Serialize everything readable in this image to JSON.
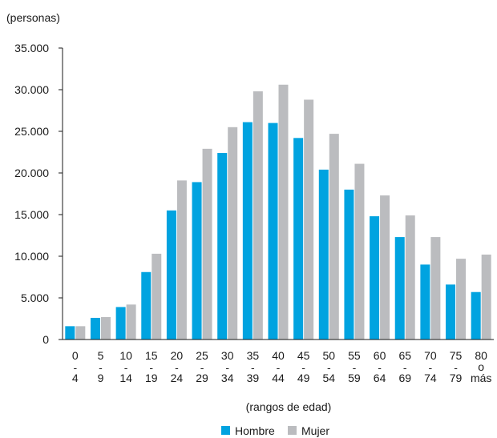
{
  "chart_data": {
    "type": "bar",
    "unit_label": "(personas)",
    "xlabel": "(rangos de edad)",
    "ylabel": "",
    "ylim": [
      0,
      35000
    ],
    "y_ticks": [
      0,
      5000,
      10000,
      15000,
      20000,
      25000,
      30000,
      35000
    ],
    "y_tick_labels": [
      "0",
      "5.000",
      "10.000",
      "15.000",
      "20.000",
      "25.000",
      "30.000",
      "35.000"
    ],
    "grid": false,
    "legend_position": "bottom",
    "categories": [
      {
        "top": "0",
        "sep": "-",
        "bottom": "4"
      },
      {
        "top": "5",
        "sep": "-",
        "bottom": "9"
      },
      {
        "top": "10",
        "sep": "-",
        "bottom": "14"
      },
      {
        "top": "15",
        "sep": "-",
        "bottom": "19"
      },
      {
        "top": "20",
        "sep": "-",
        "bottom": "24"
      },
      {
        "top": "25",
        "sep": "-",
        "bottom": "29"
      },
      {
        "top": "30",
        "sep": "-",
        "bottom": "34"
      },
      {
        "top": "35",
        "sep": "-",
        "bottom": "39"
      },
      {
        "top": "40",
        "sep": "-",
        "bottom": "44"
      },
      {
        "top": "45",
        "sep": "-",
        "bottom": "49"
      },
      {
        "top": "50",
        "sep": "-",
        "bottom": "54"
      },
      {
        "top": "55",
        "sep": "-",
        "bottom": "59"
      },
      {
        "top": "60",
        "sep": "-",
        "bottom": "64"
      },
      {
        "top": "65",
        "sep": "-",
        "bottom": "69"
      },
      {
        "top": "70",
        "sep": "-",
        "bottom": "74"
      },
      {
        "top": "75",
        "sep": "-",
        "bottom": "79"
      },
      {
        "top": "80",
        "sep": "o",
        "bottom": "más"
      }
    ],
    "series": [
      {
        "name": "Hombre",
        "color": "#00a3e0",
        "values": [
          1600,
          2600,
          3900,
          8100,
          15500,
          18900,
          22400,
          26100,
          26000,
          24200,
          20400,
          18000,
          14800,
          12300,
          9000,
          6600,
          5700
        ]
      },
      {
        "name": "Mujer",
        "color": "#bbbcbf",
        "values": [
          1600,
          2700,
          4200,
          10300,
          19100,
          22900,
          25500,
          29800,
          30600,
          28800,
          24700,
          21100,
          17300,
          14900,
          12300,
          9700,
          10200
        ]
      }
    ]
  }
}
